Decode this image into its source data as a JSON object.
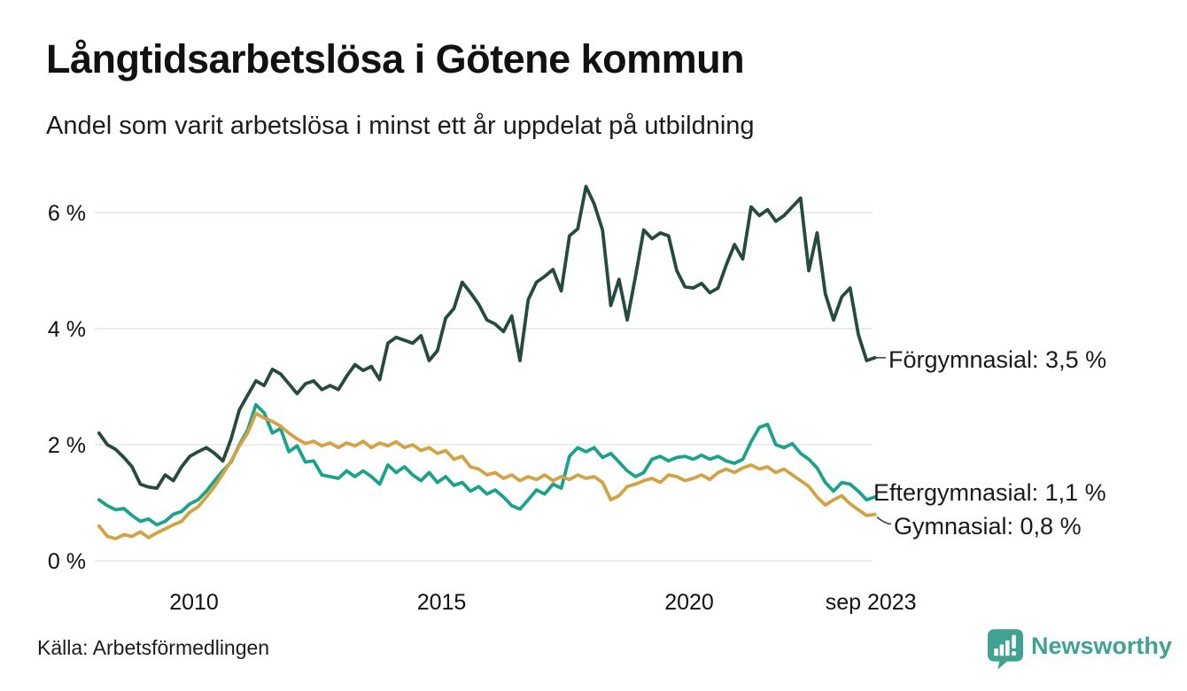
{
  "header": {
    "title": "Långtidsarbetslösa i Götene kommun",
    "subtitle": "Andel som varit arbetslösa i minst ett år uppdelat på utbildning"
  },
  "footer": {
    "source": "Källa: Arbetsförmedlingen",
    "brand": "Newsworthy"
  },
  "colors": {
    "forgymnasial": "#274a40",
    "eftergymnasial": "#1aa28a",
    "gymnasial": "#d3a343",
    "gridline": "#e5e5e5",
    "text": "#111111",
    "brand_teal": "#3fa292"
  },
  "chart_data": {
    "type": "line",
    "title": "Långtidsarbetslösa i Götene kommun",
    "subtitle": "Andel som varit arbetslösa i minst ett år uppdelat på utbildning",
    "unit": "%",
    "x_start": 2008.083,
    "x_step_years": 0.166667,
    "x_end": 2023.75,
    "y_range": [
      0,
      6.8
    ],
    "grid": true,
    "legend_position": "end-of-line",
    "y_ticks": [
      {
        "label": "0 %",
        "value": 0
      },
      {
        "label": "2 %",
        "value": 2
      },
      {
        "label": "4 %",
        "value": 4
      },
      {
        "label": "6 %",
        "value": 6
      }
    ],
    "x_ticks": [
      {
        "label": "2010",
        "year": 2010
      },
      {
        "label": "2015",
        "year": 2015
      },
      {
        "label": "2020",
        "year": 2020
      },
      {
        "label": "sep 2023",
        "year": 2023.67
      }
    ],
    "series": [
      {
        "name": "Förgymnasial",
        "end_value_label": "3,5 %",
        "end_label": "Förgymnasial: 3,5 %",
        "color": "#274a40",
        "values": [
          2.2,
          2.0,
          1.92,
          1.78,
          1.62,
          1.32,
          1.27,
          1.25,
          1.48,
          1.38,
          1.62,
          1.8,
          1.88,
          1.95,
          1.85,
          1.72,
          2.1,
          2.6,
          2.85,
          3.1,
          3.02,
          3.3,
          3.22,
          3.05,
          2.88,
          3.05,
          3.1,
          2.95,
          3.02,
          2.95,
          3.18,
          3.38,
          3.28,
          3.35,
          3.12,
          3.75,
          3.85,
          3.8,
          3.75,
          3.88,
          3.45,
          3.62,
          4.18,
          4.35,
          4.8,
          4.62,
          4.42,
          4.15,
          4.08,
          3.95,
          4.22,
          3.45,
          4.5,
          4.8,
          4.9,
          5.02,
          4.65,
          5.6,
          5.72,
          6.45,
          6.15,
          5.7,
          4.4,
          4.85,
          4.15,
          4.9,
          5.7,
          5.55,
          5.65,
          5.6,
          5.0,
          4.72,
          4.7,
          4.78,
          4.62,
          4.7,
          5.1,
          5.45,
          5.2,
          6.1,
          5.95,
          6.05,
          5.85,
          5.95,
          6.1,
          6.25,
          5.0,
          5.65,
          4.6,
          4.15,
          4.55,
          4.7,
          3.9,
          3.45,
          3.5
        ]
      },
      {
        "name": "Eftergymnasial",
        "end_value_label": "1,1 %",
        "end_label": "Eftergymnasial: 1,1 %",
        "color": "#1aa28a",
        "values": [
          1.05,
          0.95,
          0.88,
          0.9,
          0.78,
          0.68,
          0.72,
          0.62,
          0.68,
          0.8,
          0.85,
          0.98,
          1.05,
          1.2,
          1.38,
          1.55,
          1.7,
          2.0,
          2.25,
          2.69,
          2.55,
          2.2,
          2.28,
          1.88,
          1.98,
          1.7,
          1.72,
          1.48,
          1.45,
          1.42,
          1.55,
          1.45,
          1.55,
          1.45,
          1.32,
          1.65,
          1.52,
          1.62,
          1.48,
          1.38,
          1.52,
          1.35,
          1.45,
          1.3,
          1.35,
          1.2,
          1.28,
          1.15,
          1.22,
          1.1,
          0.95,
          0.89,
          1.05,
          1.22,
          1.15,
          1.32,
          1.25,
          1.8,
          1.95,
          1.88,
          1.95,
          1.78,
          1.85,
          1.7,
          1.55,
          1.45,
          1.52,
          1.75,
          1.8,
          1.72,
          1.78,
          1.8,
          1.75,
          1.82,
          1.75,
          1.8,
          1.72,
          1.68,
          1.75,
          2.05,
          2.3,
          2.35,
          2.0,
          1.95,
          2.02,
          1.85,
          1.75,
          1.6,
          1.35,
          1.2,
          1.35,
          1.32,
          1.2,
          1.05,
          1.1
        ]
      },
      {
        "name": "Gymnasial",
        "end_value_label": "0,8 %",
        "end_label": "Gymnasial: 0,8 %",
        "color": "#d3a343",
        "values": [
          0.6,
          0.42,
          0.38,
          0.45,
          0.42,
          0.5,
          0.4,
          0.48,
          0.55,
          0.62,
          0.68,
          0.84,
          0.93,
          1.1,
          1.28,
          1.5,
          1.72,
          1.98,
          2.2,
          2.54,
          2.46,
          2.4,
          2.32,
          2.2,
          2.1,
          2.02,
          2.06,
          1.98,
          2.03,
          1.95,
          2.03,
          1.98,
          2.06,
          1.95,
          2.03,
          1.98,
          2.05,
          1.95,
          2.0,
          1.9,
          1.95,
          1.85,
          1.9,
          1.75,
          1.8,
          1.62,
          1.58,
          1.48,
          1.52,
          1.42,
          1.48,
          1.38,
          1.45,
          1.4,
          1.48,
          1.38,
          1.45,
          1.4,
          1.48,
          1.42,
          1.45,
          1.35,
          1.05,
          1.12,
          1.28,
          1.32,
          1.38,
          1.42,
          1.35,
          1.48,
          1.45,
          1.38,
          1.42,
          1.48,
          1.4,
          1.52,
          1.58,
          1.52,
          1.6,
          1.65,
          1.58,
          1.62,
          1.52,
          1.58,
          1.48,
          1.38,
          1.28,
          1.1,
          0.96,
          1.05,
          1.12,
          0.98,
          0.88,
          0.78,
          0.8
        ]
      }
    ]
  }
}
